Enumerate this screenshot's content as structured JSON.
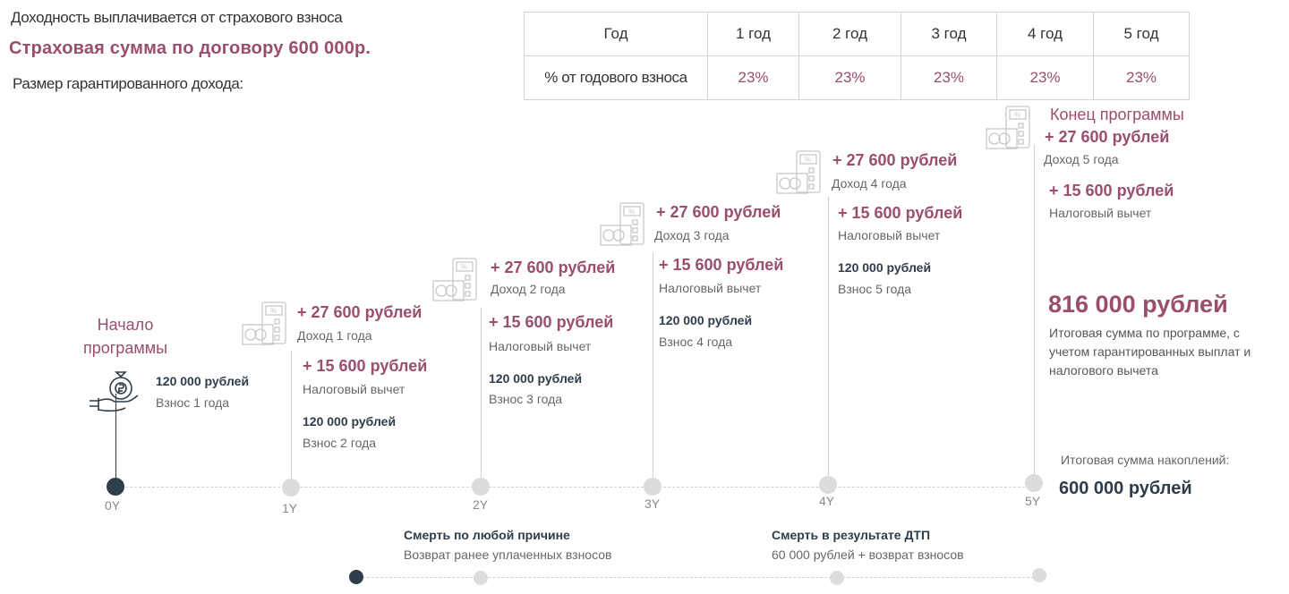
{
  "header": {
    "line1": "Доходность выплачивается от страхового взноса",
    "insured_sum": "Страховая сумма по договору 600 000р.",
    "line3": "Размер гарантированного дохода:"
  },
  "rates_table": {
    "year_label": "Год",
    "years": [
      "1 год",
      "2 год",
      "3 год",
      "4 год",
      "5 год"
    ],
    "row_label": "% от годового взноса",
    "values": [
      "23%",
      "23%",
      "23%",
      "23%",
      "23%"
    ]
  },
  "colors": {
    "accent": "#9b4d6f",
    "dark": "#2f3d4a",
    "line": "#cfcfcf"
  },
  "timeline": {
    "start_label_1": "Начало",
    "start_label_2": "программы",
    "end_label": "Конец программы",
    "y_labels": [
      "0Y",
      "1Y",
      "2Y",
      "3Y",
      "4Y",
      "5Y"
    ],
    "income": "+ 27 600 рублей",
    "tax": "+ 15 600 рублей",
    "tax_label": "Налоговый вычет",
    "payment": "120 000 рублей",
    "income_labels": [
      "Доход 1 года",
      "Доход 2 года",
      "Доход 3 года",
      "Доход 4 года",
      "Доход 5 года"
    ],
    "payment_labels": [
      "Взнос 1 года",
      "Взнос 2 года",
      "Взнос 3 года",
      "Взнос 4 года",
      "Взнос 5 года"
    ]
  },
  "summary": {
    "total": "816 000 рублей",
    "total_desc": "Итоговая сумма по программе, с учетом гарантированных выплат и налогового вычета",
    "savings_label": "Итоговая сумма накоплений:",
    "savings_value": "600 000 рублей"
  },
  "risks": [
    {
      "title": "Смерть по любой причине",
      "desc": "Возврат ранее уплаченных взносов"
    },
    {
      "title": "Смерть в результате ДТП",
      "desc": "60 000 рублей + возврат взносов"
    }
  ],
  "icons": {
    "calculator": "calculator-icon",
    "money_bag": "money-bag-hand-icon"
  }
}
